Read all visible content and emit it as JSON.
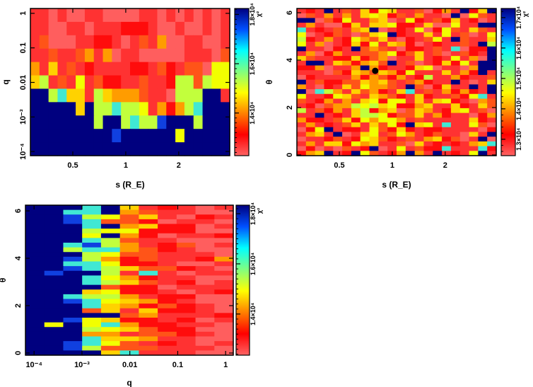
{
  "palette": {
    "0": "#ff5e5e",
    "1": "#ff3232",
    "2": "#ff0c0c",
    "3": "#ff5418",
    "4": "#ff9c00",
    "5": "#ffd200",
    "6": "#f2ff00",
    "7": "#c2ff3c",
    "8": "#40e8d4",
    "b": "#1040e0",
    "9": "#00007f"
  },
  "chart_data": [
    {
      "type": "heatmap",
      "id": "s-q",
      "xlabel": "s (R_E)",
      "ylabel": "q",
      "xscale": "log",
      "yscale": "log",
      "xlim": [
        0.287,
        3.9
      ],
      "ylim_log10": [
        -4.12,
        0.14
      ],
      "xticks": [
        {
          "v": 0.5,
          "label": "0.5"
        },
        {
          "v": 1,
          "label": "1"
        },
        {
          "v": 2,
          "label": "2"
        }
      ],
      "yticks": [
        {
          "v": 1,
          "label": "1"
        },
        {
          "v": 0.1,
          "label": "0.1"
        },
        {
          "v": 0.01,
          "label": "0.01"
        },
        {
          "v": 0.001,
          "label": "10⁻³"
        },
        {
          "v": 0.0001,
          "label": "10⁻⁴"
        }
      ],
      "colorbar": {
        "label": "χ²",
        "range": [
          1.227,
          1.824
        ],
        "unit_exp": 4,
        "ticks": [
          {
            "v": 1.4,
            "label": "1.4×10⁴"
          },
          {
            "v": 1.6,
            "label": "1.6×10⁴"
          },
          {
            "v": 1.8,
            "label": "1.8×10⁴"
          }
        ]
      },
      "grid_codes_top_to_bottom": [
        "1101001100001101010101",
        "1100110111222100100101",
        "1300011221013140011001",
        "1131134140110000011103",
        "4151312111122132133066",
        "5713161322113112773766",
        "9978551754443110777991",
        "9999959778776142478999",
        "99999997997877b9997999",
        "999999999b999999699999",
        "9999999999999999999999"
      ]
    },
    {
      "type": "heatmap",
      "id": "s-theta",
      "xlabel": "s (R_E)",
      "ylabel": "θ",
      "xscale": "log",
      "yscale": "linear",
      "xlim": [
        0.287,
        3.9
      ],
      "ylim": [
        -0.03,
        6.18
      ],
      "xticks": [
        {
          "v": 0.5,
          "label": "0.5"
        },
        {
          "v": 1,
          "label": "1"
        },
        {
          "v": 2,
          "label": "2"
        }
      ],
      "yticks": [
        {
          "v": 0,
          "label": "0"
        },
        {
          "v": 2,
          "label": "2"
        },
        {
          "v": 4,
          "label": "4"
        },
        {
          "v": 6,
          "label": "6"
        }
      ],
      "marker": {
        "s": 0.8,
        "theta": 3.55
      },
      "colorbar": {
        "label": "χ²",
        "range": [
          1.246,
          1.73
        ],
        "unit_exp": 4,
        "ticks": [
          {
            "v": 1.3,
            "label": "1.3×10⁴"
          },
          {
            "v": 1.4,
            "label": "1.4×10⁴"
          },
          {
            "v": 1.5,
            "label": "1.5×10⁴"
          },
          {
            "v": 1.6,
            "label": "1.6×10⁴"
          },
          {
            "v": 1.7,
            "label": "1.7×10⁴"
          }
        ]
      },
      "grid_codes_top_to_bottom": [
        "1219131526511302419259",
        "0314141565231411090631",
        "9903261145016213251201",
        "1410025155622150061199",
        "8121314590121602631531",
        "6012310356921151613016",
        "7214126435102136193115",
        "6140125261542012113197",
        "9110219343102213180229",
        "1402411334623513013219",
        "5311225234011512161409",
        "1991542453913012526199",
        "2240114942112560110499",
        "1110325435426111514291",
        "0211114243241271142113",
        "9132233545313421191015",
        "4102153644319302511919",
        "9087415342158131424219",
        "6112653154321521132681",
        "3124141562661515621043",
        "1203447675622451152153",
        "7132415724503541256130",
        "1191215776233514211024",
        "4221352646641311111521",
        "1412135153629561811630",
        "0269122163252122111102",
        "1451901561364123110519",
        "0112312653213145230190",
        "1415526451130512121458",
        "0201031290161322811182",
        "2459129631249419121691"
      ]
    },
    {
      "type": "heatmap",
      "id": "q-theta",
      "xlabel": "q",
      "ylabel": "θ",
      "xscale": "log",
      "yscale": "linear",
      "xlim_log10": [
        -4.18,
        0.16
      ],
      "ylim": [
        -0.09,
        6.24
      ],
      "xticks": [
        {
          "v": 0.0001,
          "label": "10⁻⁴"
        },
        {
          "v": 0.001,
          "label": "10⁻³"
        },
        {
          "v": 0.01,
          "label": "0.01"
        },
        {
          "v": 0.1,
          "label": "0.1"
        },
        {
          "v": 1,
          "label": "1"
        }
      ],
      "yticks": [
        {
          "v": 0,
          "label": "0"
        },
        {
          "v": 2,
          "label": "2"
        },
        {
          "v": 4,
          "label": "4"
        },
        {
          "v": 6,
          "label": "6"
        }
      ],
      "colorbar": {
        "label": "χ²",
        "range": [
          1.236,
          1.834
        ],
        "unit_exp": 4,
        "ticks": [
          {
            "v": 1.4,
            "label": "1.4×10⁴"
          },
          {
            "v": 1.6,
            "label": "1.6×10⁴"
          },
          {
            "v": 1.8,
            "label": "1.8×10⁴"
          }
        ]
      },
      "grid_codes_top_to_bottom": [
        "99989512101",
        "99889431100",
        "99b76351021",
        "99b83320110",
        "99989452201",
        "99976622200",
        "99969420112",
        "99987311000",
        "998b7412301",
        "99788432100",
        "99976331110",
        "99b74231124",
        "99886221001",
        "99b87533210",
        "9b997181011",
        "99986421100",
        "99987531201",
        "99993220111",
        "99956221012",
        "99877412200",
        "99b86542100",
        "99985423210",
        "99935152210",
        "99999341112",
        "99b65221201",
        "96968422110",
        "99976532200",
        "99944133210",
        "99985541100",
        "99b86312101",
        "99b73331110",
        "99995811100"
      ]
    }
  ]
}
